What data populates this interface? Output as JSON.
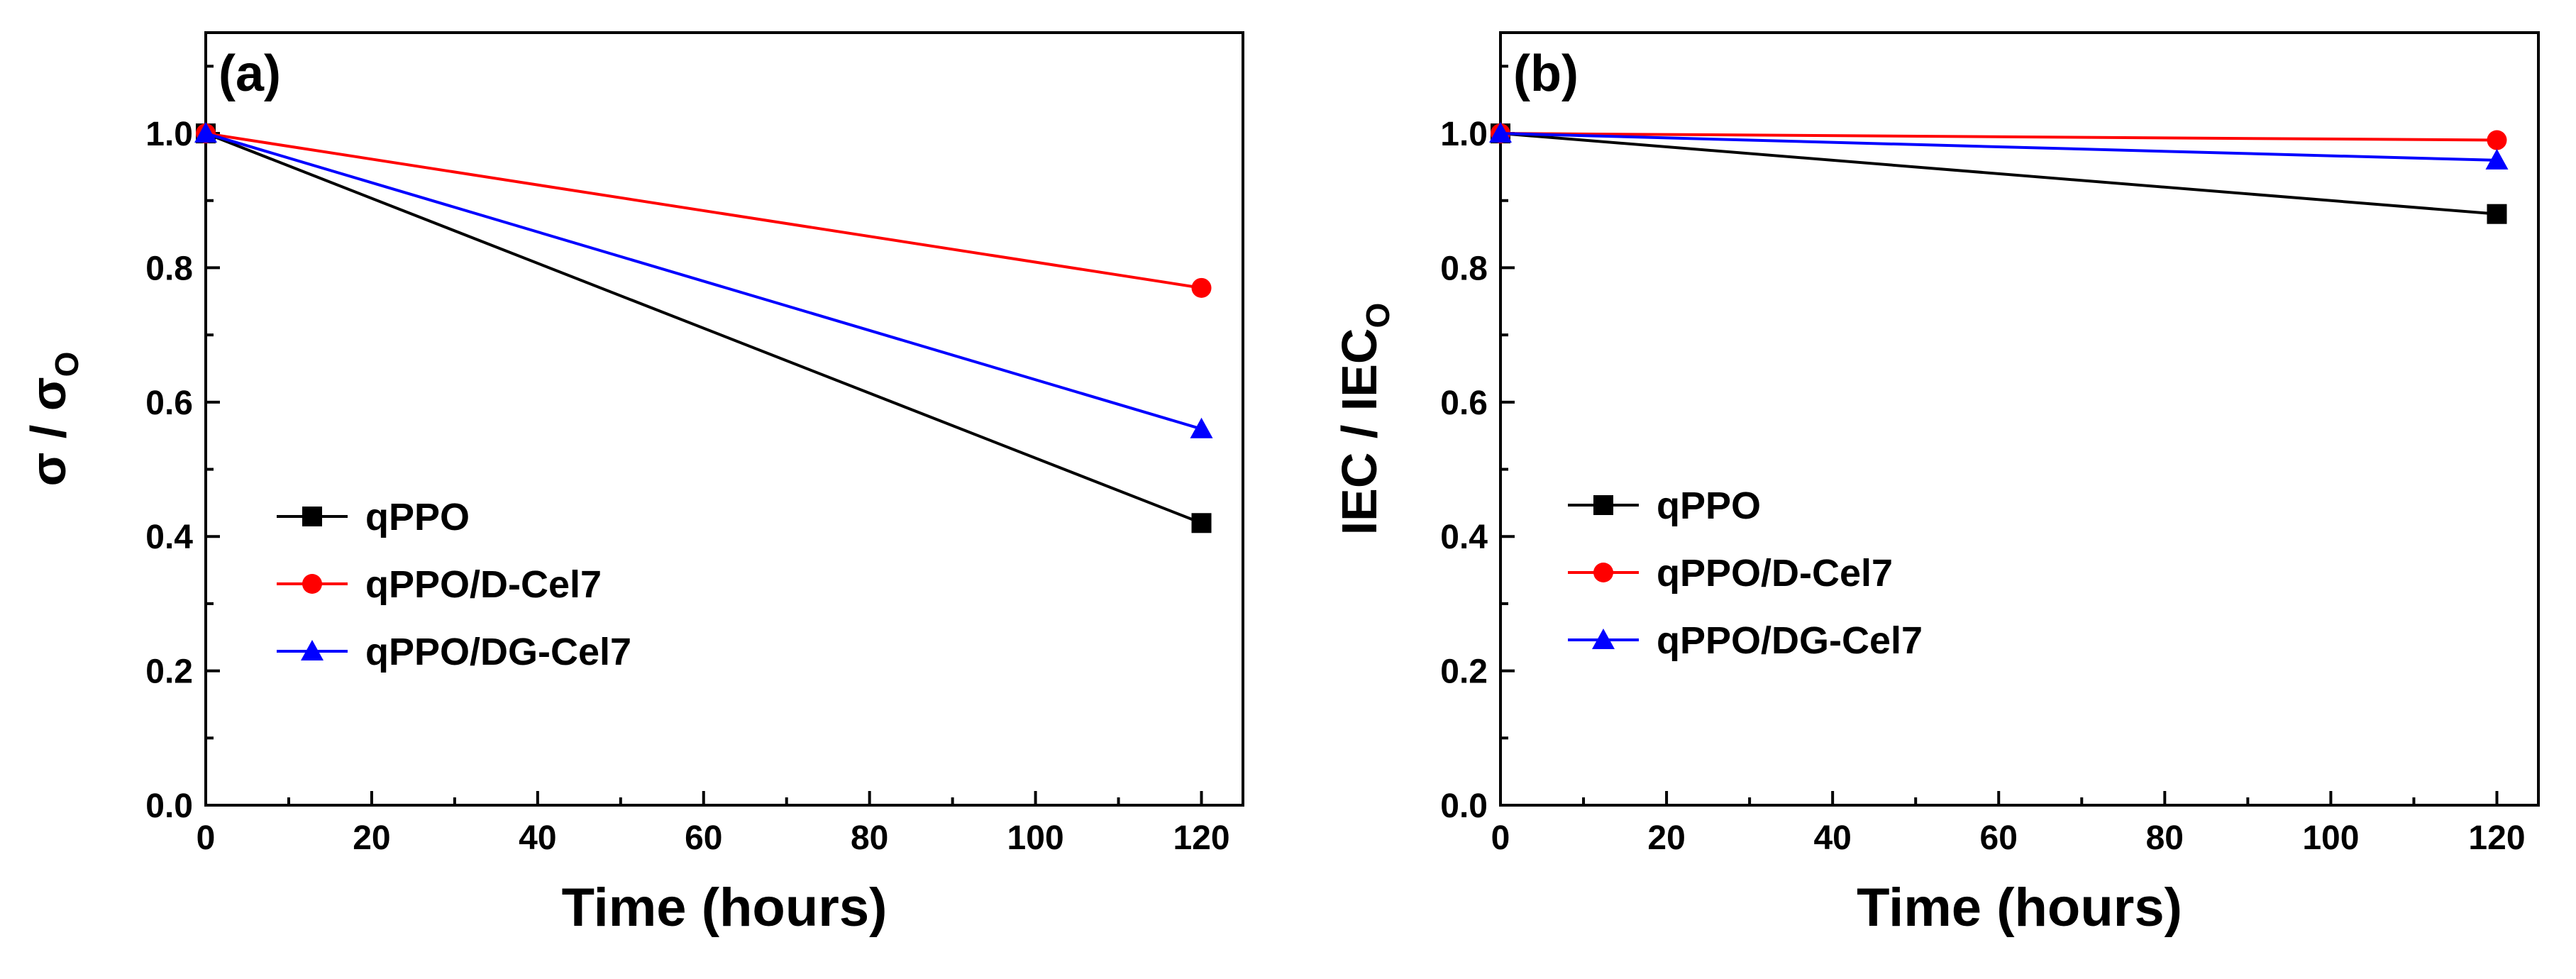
{
  "colors": {
    "qPPO": "#000000",
    "qPPO/D-Cel7": "#ff0000",
    "qPPO/DG-Cel7": "#0000ff",
    "axis": "#000000"
  },
  "chart_data": [
    {
      "type": "line",
      "panel": "(a)",
      "xlabel": "Time (hours)",
      "ylabel": {
        "main": "σ / σ",
        "sub": "O"
      },
      "xlim": [
        0,
        125
      ],
      "ylim": [
        0,
        1.15
      ],
      "xticks": [
        0,
        20,
        40,
        60,
        80,
        100,
        120
      ],
      "yticks": [
        0.0,
        0.2,
        0.4,
        0.6,
        0.8,
        1.0
      ],
      "legend_position": "bottom-left",
      "series": [
        {
          "name": "qPPO",
          "marker": "square",
          "x": [
            0,
            120
          ],
          "y": [
            1.0,
            0.42
          ]
        },
        {
          "name": "qPPO/D-Cel7",
          "marker": "circle",
          "x": [
            0,
            120
          ],
          "y": [
            1.0,
            0.77
          ]
        },
        {
          "name": "qPPO/DG-Cel7",
          "marker": "triangle",
          "x": [
            0,
            120
          ],
          "y": [
            1.0,
            0.56
          ]
        }
      ]
    },
    {
      "type": "line",
      "panel": "(b)",
      "xlabel": "Time (hours)",
      "ylabel": {
        "main": "IEC / IEC",
        "sub": "O"
      },
      "xlim": [
        0,
        125
      ],
      "ylim": [
        0,
        1.15
      ],
      "xticks": [
        0,
        20,
        40,
        60,
        80,
        100,
        120
      ],
      "yticks": [
        0.0,
        0.2,
        0.4,
        0.6,
        0.8,
        1.0
      ],
      "legend_position": "bottom-left",
      "series": [
        {
          "name": "qPPO",
          "marker": "square",
          "x": [
            0,
            120
          ],
          "y": [
            1.0,
            0.88
          ]
        },
        {
          "name": "qPPO/D-Cel7",
          "marker": "circle",
          "x": [
            0,
            120
          ],
          "y": [
            1.0,
            0.99
          ]
        },
        {
          "name": "qPPO/DG-Cel7",
          "marker": "triangle",
          "x": [
            0,
            120
          ],
          "y": [
            1.0,
            0.96
          ]
        }
      ]
    }
  ]
}
